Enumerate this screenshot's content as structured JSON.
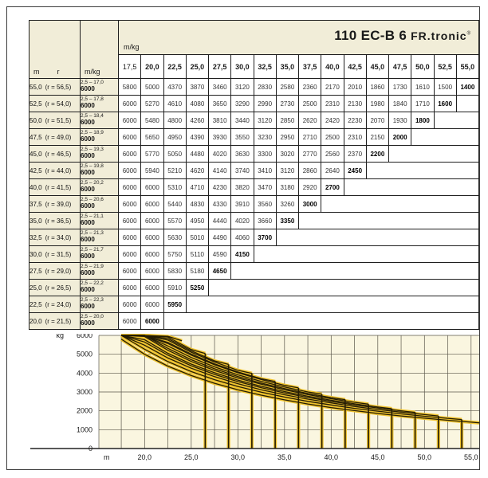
{
  "title": {
    "model": "110 EC-B 6",
    "brand": "FR.tronic",
    "registered": "®"
  },
  "colors": {
    "cream": "#f1edd8",
    "chart_bg": "#faf6e0",
    "curve_gold": "#eec22f",
    "curve_dark": "#241c04",
    "grid": "#5a564a",
    "border": "#1f1f1f"
  },
  "table": {
    "corner_m": "m",
    "corner_r": "r",
    "corner_mkg": "m/kg",
    "span_mkg": "m/kg",
    "radius_columns": [
      "17,5",
      "20,0",
      "22,5",
      "25,0",
      "27,5",
      "30,0",
      "32,5",
      "35,0",
      "37,5",
      "40,0",
      "42,5",
      "45,0",
      "47,5",
      "50,0",
      "52,5",
      "55,0"
    ],
    "rows": [
      {
        "jib": "55,0",
        "r_label": "(r = 56,5)",
        "r_max": 56.5,
        "range": "2,5 – 17,0",
        "range_load": "6000",
        "values": [
          5800,
          5000,
          4370,
          3870,
          3460,
          3120,
          2830,
          2580,
          2360,
          2170,
          2010,
          1860,
          1730,
          1610,
          1500,
          1400
        ]
      },
      {
        "jib": "52,5",
        "r_label": "(r = 54,0)",
        "r_max": 54.0,
        "range": "2,5 – 17,8",
        "range_load": "6000",
        "values": [
          6000,
          5270,
          4610,
          4080,
          3650,
          3290,
          2990,
          2730,
          2500,
          2310,
          2130,
          1980,
          1840,
          1710,
          1600
        ]
      },
      {
        "jib": "50,0",
        "r_label": "(r = 51,5)",
        "r_max": 51.5,
        "range": "2,5 – 18,4",
        "range_load": "6000",
        "values": [
          6000,
          5480,
          4800,
          4260,
          3810,
          3440,
          3120,
          2850,
          2620,
          2420,
          2230,
          2070,
          1930,
          1800
        ]
      },
      {
        "jib": "47,5",
        "r_label": "(r = 49,0)",
        "r_max": 49.0,
        "range": "2,5 – 18,9",
        "range_load": "6000",
        "values": [
          6000,
          5650,
          4950,
          4390,
          3930,
          3550,
          3230,
          2950,
          2710,
          2500,
          2310,
          2150,
          2000
        ]
      },
      {
        "jib": "45,0",
        "r_label": "(r = 46,5)",
        "r_max": 46.5,
        "range": "2,5 – 19,3",
        "range_load": "6000",
        "values": [
          6000,
          5770,
          5050,
          4480,
          4020,
          3630,
          3300,
          3020,
          2770,
          2560,
          2370,
          2200
        ]
      },
      {
        "jib": "42,5",
        "r_label": "(r = 44,0)",
        "r_max": 44.0,
        "range": "2,5 – 19,8",
        "range_load": "6000",
        "values": [
          6000,
          5940,
          5210,
          4620,
          4140,
          3740,
          3410,
          3120,
          2860,
          2640,
          2450
        ]
      },
      {
        "jib": "40,0",
        "r_label": "(r = 41,5)",
        "r_max": 41.5,
        "range": "2,5 – 20,2",
        "range_load": "6000",
        "values": [
          6000,
          6000,
          5310,
          4710,
          4230,
          3820,
          3470,
          3180,
          2920,
          2700
        ]
      },
      {
        "jib": "37,5",
        "r_label": "(r = 39,0)",
        "r_max": 39.0,
        "range": "2,5 – 20,6",
        "range_load": "6000",
        "values": [
          6000,
          6000,
          5440,
          4830,
          4330,
          3910,
          3560,
          3260,
          3000
        ]
      },
      {
        "jib": "35,0",
        "r_label": "(r = 36,5)",
        "r_max": 36.5,
        "range": "2,5 – 21,1",
        "range_load": "6000",
        "values": [
          6000,
          6000,
          5570,
          4950,
          4440,
          4020,
          3660,
          3350
        ]
      },
      {
        "jib": "32,5",
        "r_label": "(r = 34,0)",
        "r_max": 34.0,
        "range": "2,5 – 21,3",
        "range_load": "6000",
        "values": [
          6000,
          6000,
          5630,
          5010,
          4490,
          4060,
          3700
        ]
      },
      {
        "jib": "30,0",
        "r_label": "(r = 31,5)",
        "r_max": 31.5,
        "range": "2,5 – 21,7",
        "range_load": "6000",
        "values": [
          6000,
          6000,
          5750,
          5110,
          4590,
          4150
        ]
      },
      {
        "jib": "27,5",
        "r_label": "(r = 29,0)",
        "r_max": 29.0,
        "range": "2,5 – 21,9",
        "range_load": "6000",
        "values": [
          6000,
          6000,
          5830,
          5180,
          4650
        ]
      },
      {
        "jib": "25,0",
        "r_label": "(r = 26,5)",
        "r_max": 26.5,
        "range": "2,5 – 22,2",
        "range_load": "6000",
        "values": [
          6000,
          6000,
          5910,
          5250
        ]
      },
      {
        "jib": "22,5",
        "r_label": "(r = 24,0)",
        "r_max": 24.0,
        "range": "2,5 – 22,3",
        "range_load": "6000",
        "values": [
          6000,
          6000,
          5950
        ]
      },
      {
        "jib": "20,0",
        "r_label": "(r = 21,5)",
        "r_max": 21.5,
        "range": "2,5 – 20,0",
        "range_load": "6000",
        "values": [
          6000,
          6000
        ]
      }
    ]
  },
  "chart_data": {
    "type": "line",
    "title": "Load capacity curves 110 EC-B 6 FR.tronic",
    "xlabel": "m",
    "ylabel": "kg",
    "xlim": [
      15.1,
      56.3
    ],
    "ylim": [
      0,
      6000
    ],
    "grid": true,
    "x_grid_start": 17.5,
    "x_grid_step": 2.5,
    "x_grid_end": 55,
    "xticks": [
      20,
      25,
      30,
      35,
      40,
      45,
      50,
      55
    ],
    "xtick_labels": [
      "20,0",
      "25,0",
      "30,0",
      "35,0",
      "40,0",
      "45,0",
      "50,0",
      "55,0"
    ],
    "yticks": [
      6000,
      5000,
      4000,
      3000,
      2000,
      1000,
      0
    ],
    "x_start": 17.5,
    "x_step": 2.5,
    "series": [
      {
        "name": "jib 55,0",
        "r_max": 56.5,
        "values": [
          5800,
          5000,
          4370,
          3870,
          3460,
          3120,
          2830,
          2580,
          2360,
          2170,
          2010,
          1860,
          1730,
          1610,
          1500,
          1400
        ]
      },
      {
        "name": "jib 52,5",
        "r_max": 54.0,
        "values": [
          6000,
          5270,
          4610,
          4080,
          3650,
          3290,
          2990,
          2730,
          2500,
          2310,
          2130,
          1980,
          1840,
          1710,
          1600
        ]
      },
      {
        "name": "jib 50,0",
        "r_max": 51.5,
        "values": [
          6000,
          5480,
          4800,
          4260,
          3810,
          3440,
          3120,
          2850,
          2620,
          2420,
          2230,
          2070,
          1930,
          1800
        ]
      },
      {
        "name": "jib 47,5",
        "r_max": 49.0,
        "values": [
          6000,
          5650,
          4950,
          4390,
          3930,
          3550,
          3230,
          2950,
          2710,
          2500,
          2310,
          2150,
          2000
        ]
      },
      {
        "name": "jib 45,0",
        "r_max": 46.5,
        "values": [
          6000,
          5770,
          5050,
          4480,
          4020,
          3630,
          3300,
          3020,
          2770,
          2560,
          2370,
          2200
        ]
      },
      {
        "name": "jib 42,5",
        "r_max": 44.0,
        "values": [
          6000,
          5940,
          5210,
          4620,
          4140,
          3740,
          3410,
          3120,
          2860,
          2640,
          2450
        ]
      },
      {
        "name": "jib 40,0",
        "r_max": 41.5,
        "values": [
          6000,
          6000,
          5310,
          4710,
          4230,
          3820,
          3470,
          3180,
          2920,
          2700
        ]
      },
      {
        "name": "jib 37,5",
        "r_max": 39.0,
        "values": [
          6000,
          6000,
          5440,
          4830,
          4330,
          3910,
          3560,
          3260,
          3000
        ]
      },
      {
        "name": "jib 35,0",
        "r_max": 36.5,
        "values": [
          6000,
          6000,
          5570,
          4950,
          4440,
          4020,
          3660,
          3350
        ]
      },
      {
        "name": "jib 32,5",
        "r_max": 34.0,
        "values": [
          6000,
          6000,
          5630,
          5010,
          4490,
          4060,
          3700
        ]
      },
      {
        "name": "jib 30,0",
        "r_max": 31.5,
        "values": [
          6000,
          6000,
          5750,
          5110,
          4590,
          4150
        ]
      },
      {
        "name": "jib 27,5",
        "r_max": 29.0,
        "values": [
          6000,
          6000,
          5830,
          5180,
          4650
        ]
      },
      {
        "name": "jib 25,0",
        "r_max": 26.5,
        "values": [
          6000,
          6000,
          5910,
          5250
        ]
      },
      {
        "name": "jib 22,5",
        "r_max": 24.0,
        "values": [
          6000,
          6000,
          5950
        ]
      },
      {
        "name": "jib 20,0",
        "r_max": 21.5,
        "values": [
          6000,
          6000
        ]
      }
    ]
  }
}
